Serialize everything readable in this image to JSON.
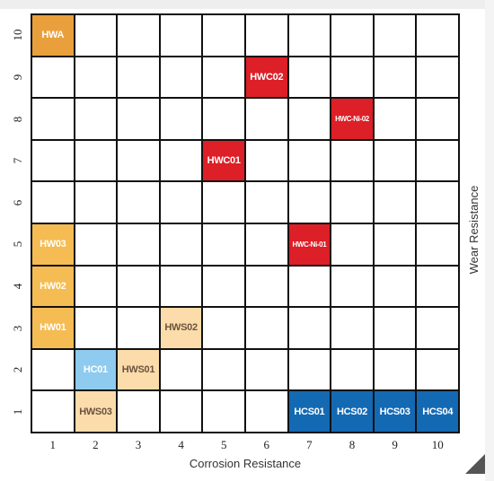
{
  "chart_data": {
    "type": "table",
    "xlabel": "Corrosion Resistance",
    "ylabel": "Wear Resistance",
    "x_ticks": [
      "1",
      "2",
      "3",
      "4",
      "5",
      "6",
      "7",
      "8",
      "9",
      "10"
    ],
    "y_ticks": [
      "1",
      "2",
      "3",
      "4",
      "5",
      "6",
      "7",
      "8",
      "9",
      "10"
    ],
    "xlim": [
      1,
      10
    ],
    "ylim": [
      1,
      10
    ],
    "grid": true,
    "colors": {
      "grid_line": "#111111",
      "dark_orange": "#e9a03c",
      "orange": "#f4bc52",
      "light_peach": "#fbdcaa",
      "light_blue": "#8fcbef",
      "red": "#dd1f27",
      "blue": "#1469b3"
    },
    "points": [
      {
        "label": "HWA",
        "x": 1,
        "y": 10,
        "color": "#e9a03c"
      },
      {
        "label": "HWC02",
        "x": 6,
        "y": 9,
        "color": "#dd1f27"
      },
      {
        "label": "HWC-Ni-02",
        "x": 8,
        "y": 8,
        "color": "#dd1f27"
      },
      {
        "label": "HWC01",
        "x": 5,
        "y": 7,
        "color": "#dd1f27"
      },
      {
        "label": "HW03",
        "x": 1,
        "y": 5,
        "color": "#f4bc52"
      },
      {
        "label": "HWC-Ni-01",
        "x": 7,
        "y": 5,
        "color": "#dd1f27"
      },
      {
        "label": "HW02",
        "x": 1,
        "y": 4,
        "color": "#f4bc52"
      },
      {
        "label": "HW01",
        "x": 1,
        "y": 3,
        "color": "#f4bc52"
      },
      {
        "label": "HWS02",
        "x": 4,
        "y": 3,
        "color": "#fbdcaa"
      },
      {
        "label": "HC01",
        "x": 2,
        "y": 2,
        "color": "#8fcbef"
      },
      {
        "label": "HWS01",
        "x": 3,
        "y": 2,
        "color": "#fbdcaa"
      },
      {
        "label": "HWS03",
        "x": 2,
        "y": 1,
        "color": "#fbdcaa"
      },
      {
        "label": "HCS01",
        "x": 7,
        "y": 1,
        "color": "#1469b3"
      },
      {
        "label": "HCS02",
        "x": 8,
        "y": 1,
        "color": "#1469b3"
      },
      {
        "label": "HCS03",
        "x": 9,
        "y": 1,
        "color": "#1469b3"
      },
      {
        "label": "HCS04",
        "x": 10,
        "y": 1,
        "color": "#1469b3"
      }
    ]
  }
}
